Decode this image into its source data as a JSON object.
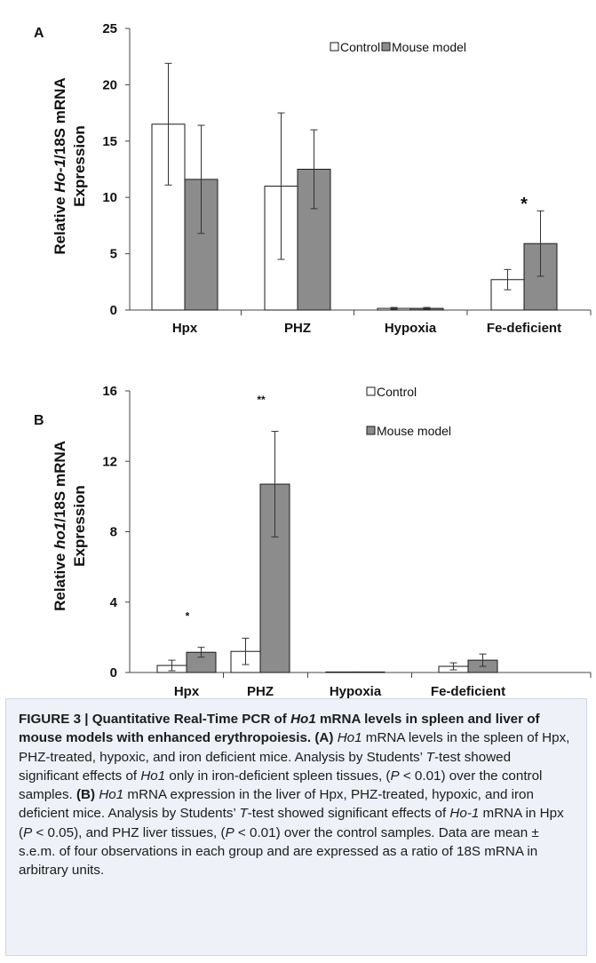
{
  "figure": {
    "panels": [
      {
        "letter": "A",
        "ylabel_pre": "Relative ",
        "ylabel_gene": "Ho-1",
        "ylabel_post": "/18S mRNA",
        "ylabel_line2": "Expression"
      },
      {
        "letter": "B",
        "ylabel_pre": "Relative ",
        "ylabel_gene": "ho1",
        "ylabel_post": "/18S mRNA",
        "ylabel_line2": "Expression"
      }
    ],
    "colors": {
      "control_fill": "#ffffff",
      "model_fill": "#8c8c8c",
      "stroke": "#1a1a1a",
      "caption_bg": "#eef1f7"
    },
    "caption": {
      "parts": [
        {
          "t": "FIGURE 3 | Quantitative Real-Time PCR of ",
          "s": "b"
        },
        {
          "t": "Ho1",
          "s": "bi"
        },
        {
          "t": " mRNA levels in spleen and liver of mouse models with enhanced erythropoiesis. ",
          "s": "b"
        },
        {
          "t": "(A)",
          "s": "b"
        },
        {
          "t": " ",
          "s": ""
        },
        {
          "t": "Ho1",
          "s": "i"
        },
        {
          "t": " mRNA levels in the spleen of Hpx, PHZ-treated, hypoxic, and iron deficient mice. Analysis by Students’ ",
          "s": ""
        },
        {
          "t": "T",
          "s": "i"
        },
        {
          "t": "-test showed significant effects of ",
          "s": ""
        },
        {
          "t": "Ho1",
          "s": "i"
        },
        {
          "t": " only in iron-deficient spleen tissues, (",
          "s": ""
        },
        {
          "t": "P",
          "s": "i"
        },
        {
          "t": " < 0.01) over the control samples. ",
          "s": ""
        },
        {
          "t": "(B)",
          "s": "b"
        },
        {
          "t": " ",
          "s": ""
        },
        {
          "t": "Ho1",
          "s": "i"
        },
        {
          "t": " mRNA expression in the liver of Hpx, PHZ-treated, hypoxic, and iron deficient mice. Analysis by Students’ ",
          "s": ""
        },
        {
          "t": "T",
          "s": "i"
        },
        {
          "t": "-test showed significant effects of ",
          "s": ""
        },
        {
          "t": "Ho-1",
          "s": "i"
        },
        {
          "t": " mRNA in Hpx (",
          "s": ""
        },
        {
          "t": "P",
          "s": "i"
        },
        {
          "t": " < 0.05), and PHZ liver tissues, (",
          "s": ""
        },
        {
          "t": "P",
          "s": "i"
        },
        {
          "t": " < 0.01) over the control samples. Data are mean ± s.e.m. of four observations in each group and are expressed as a ratio of 18S mRNA in arbitrary units.",
          "s": ""
        }
      ]
    }
  },
  "chart_data": [
    {
      "type": "bar",
      "panel": "A",
      "categories": [
        "Hpx",
        "PHZ",
        "Hypoxia",
        "Fe-deficient"
      ],
      "series": [
        {
          "name": "Control",
          "values": [
            16.5,
            11.0,
            0.15,
            2.7
          ],
          "errors": [
            5.4,
            6.5,
            0.08,
            0.9
          ]
        },
        {
          "name": "Mouse model",
          "values": [
            11.6,
            12.5,
            0.15,
            5.9
          ],
          "errors": [
            4.8,
            3.5,
            0.08,
            2.9
          ]
        }
      ],
      "ylim": [
        0,
        25
      ],
      "yticks": [
        "0",
        "5",
        "10",
        "15",
        "20",
        "25"
      ],
      "ylabel": "Relative Ho-1/18S mRNA Expression",
      "legend": "top-right, single row",
      "annotations": [
        {
          "text": "*",
          "category": "Fe-deficient",
          "value": 9.7
        }
      ]
    },
    {
      "type": "bar",
      "panel": "B",
      "categories": [
        "Hpx",
        "PHZ",
        "Hypoxia",
        "Fe-deficient"
      ],
      "series": [
        {
          "name": "Control",
          "values": [
            0.4,
            1.2,
            0,
            0.35
          ],
          "errors": [
            0.3,
            0.75,
            0,
            0.2
          ]
        },
        {
          "name": "Mouse model",
          "values": [
            1.15,
            10.7,
            0,
            0.7
          ],
          "errors": [
            0.28,
            3.0,
            0,
            0.35
          ]
        }
      ],
      "ylim": [
        0,
        16
      ],
      "yticks": [
        "0",
        "4",
        "8",
        "12",
        "16"
      ],
      "ylabel": "Relative ho1/18S mRNA Expression",
      "legend": "top-right, stacked",
      "annotations": [
        {
          "text": "*",
          "category": "Hpx",
          "value": 3.3
        },
        {
          "text": "**",
          "category": "PHZ",
          "value": 15.6
        }
      ]
    }
  ]
}
